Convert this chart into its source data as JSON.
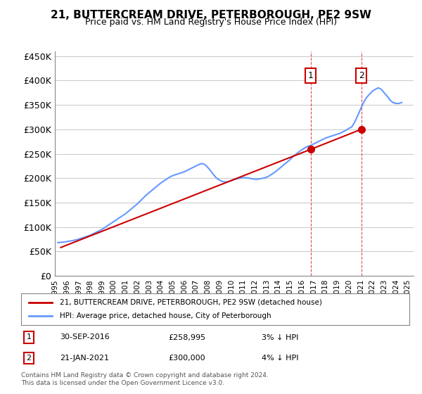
{
  "title": "21, BUTTERCREAM DRIVE, PETERBOROUGH, PE2 9SW",
  "subtitle": "Price paid vs. HM Land Registry's House Price Index (HPI)",
  "ylabel_ticks": [
    "£0",
    "£50K",
    "£100K",
    "£150K",
    "£200K",
    "£250K",
    "£300K",
    "£350K",
    "£400K",
    "£450K"
  ],
  "ylabel_values": [
    0,
    50000,
    100000,
    150000,
    200000,
    250000,
    300000,
    350000,
    400000,
    450000
  ],
  "ylim": [
    0,
    460000
  ],
  "xlim_start": 1995.0,
  "xlim_end": 2025.5,
  "xtick_years": [
    1995,
    1996,
    1997,
    1998,
    1999,
    2000,
    2001,
    2002,
    2003,
    2004,
    2005,
    2006,
    2007,
    2008,
    2009,
    2010,
    2011,
    2012,
    2013,
    2014,
    2015,
    2016,
    2017,
    2018,
    2019,
    2020,
    2021,
    2022,
    2023,
    2024,
    2025
  ],
  "hpi_color": "#6699ff",
  "price_color": "#cc0000",
  "marker1_color": "#cc0000",
  "marker2_color": "#cc0000",
  "purchase1": {
    "date": 2016.75,
    "price": 258995,
    "label": "1",
    "date_str": "30-SEP-2016",
    "price_str": "£258,995",
    "note": "3% ↓ HPI"
  },
  "purchase2": {
    "date": 2021.05,
    "price": 300000,
    "label": "2",
    "date_str": "21-JAN-2021",
    "price_str": "£300,000",
    "note": "4% ↓ HPI"
  },
  "legend1": "21, BUTTERCREAM DRIVE, PETERBOROUGH, PE2 9SW (detached house)",
  "legend2": "HPI: Average price, detached house, City of Peterborough",
  "footnote": "Contains HM Land Registry data © Crown copyright and database right 2024.\nThis data is licensed under the Open Government Licence v3.0.",
  "background_color": "#ffffff",
  "grid_color": "#cccccc",
  "hpi_data": {
    "years": [
      1995.25,
      1995.5,
      1995.75,
      1996.0,
      1996.25,
      1996.5,
      1996.75,
      1997.0,
      1997.25,
      1997.5,
      1997.75,
      1998.0,
      1998.25,
      1998.5,
      1998.75,
      1999.0,
      1999.25,
      1999.5,
      1999.75,
      2000.0,
      2000.25,
      2000.5,
      2000.75,
      2001.0,
      2001.25,
      2001.5,
      2001.75,
      2002.0,
      2002.25,
      2002.5,
      2002.75,
      2003.0,
      2003.25,
      2003.5,
      2003.75,
      2004.0,
      2004.25,
      2004.5,
      2004.75,
      2005.0,
      2005.25,
      2005.5,
      2005.75,
      2006.0,
      2006.25,
      2006.5,
      2006.75,
      2007.0,
      2007.25,
      2007.5,
      2007.75,
      2008.0,
      2008.25,
      2008.5,
      2008.75,
      2009.0,
      2009.25,
      2009.5,
      2009.75,
      2010.0,
      2010.25,
      2010.5,
      2010.75,
      2011.0,
      2011.25,
      2011.5,
      2011.75,
      2012.0,
      2012.25,
      2012.5,
      2012.75,
      2013.0,
      2013.25,
      2013.5,
      2013.75,
      2014.0,
      2014.25,
      2014.5,
      2014.75,
      2015.0,
      2015.25,
      2015.5,
      2015.75,
      2016.0,
      2016.25,
      2016.5,
      2016.75,
      2017.0,
      2017.25,
      2017.5,
      2017.75,
      2018.0,
      2018.25,
      2018.5,
      2018.75,
      2019.0,
      2019.25,
      2019.5,
      2019.75,
      2020.0,
      2020.25,
      2020.5,
      2020.75,
      2021.0,
      2021.25,
      2021.5,
      2021.75,
      2022.0,
      2022.25,
      2022.5,
      2022.75,
      2023.0,
      2023.25,
      2023.5,
      2023.75,
      2024.0,
      2024.25,
      2024.5
    ],
    "values": [
      68000,
      68500,
      69000,
      70000,
      71000,
      72000,
      73500,
      75000,
      77000,
      79000,
      81000,
      83000,
      86000,
      89000,
      92000,
      95000,
      99000,
      103000,
      107000,
      111000,
      115000,
      119000,
      123000,
      127000,
      132000,
      137000,
      142000,
      147000,
      153000,
      159000,
      165000,
      170000,
      175000,
      180000,
      185000,
      190000,
      194000,
      198000,
      202000,
      205000,
      207000,
      209000,
      211000,
      213000,
      216000,
      219000,
      222000,
      225000,
      228000,
      230000,
      228000,
      222000,
      215000,
      207000,
      200000,
      196000,
      193000,
      192000,
      193000,
      195000,
      197000,
      199000,
      200000,
      201000,
      201000,
      200000,
      199000,
      198000,
      198000,
      199000,
      200000,
      202000,
      205000,
      209000,
      213000,
      218000,
      223000,
      228000,
      233000,
      238000,
      244000,
      249000,
      254000,
      258000,
      262000,
      265000,
      267000,
      270000,
      273000,
      276000,
      279000,
      282000,
      284000,
      286000,
      288000,
      290000,
      292000,
      295000,
      298000,
      302000,
      305000,
      315000,
      328000,
      342000,
      355000,
      365000,
      372000,
      378000,
      382000,
      385000,
      382000,
      375000,
      368000,
      360000,
      355000,
      353000,
      353000,
      355000
    ]
  },
  "price_data": {
    "years": [
      1995.5,
      2016.75,
      2021.05
    ],
    "values": [
      58000,
      258995,
      300000
    ]
  }
}
